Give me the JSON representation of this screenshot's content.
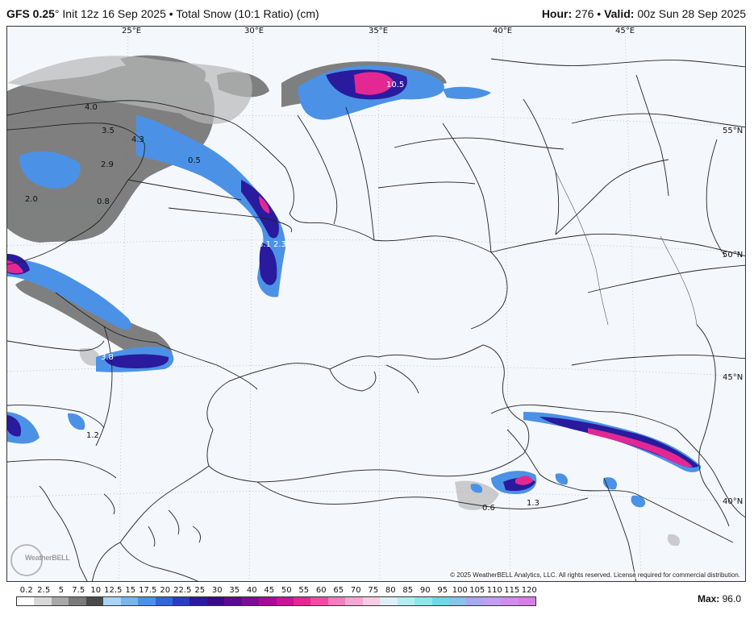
{
  "header": {
    "model": "GFS 0.25",
    "degree": "°",
    "init": " Init 12z 16 Sep 2025 • Total Snow (10:1 Ratio) (cm)",
    "hour_label": "Hour:",
    "hour_value": " 276 • ",
    "valid_label": "Valid:",
    "valid_value": " 00z Sun 28 Sep 2025"
  },
  "map": {
    "longitude_labels": [
      "25°E",
      "30°E",
      "35°E",
      "40°E",
      "45°E"
    ],
    "latitude_labels": [
      "55°N",
      "50°N",
      "45°N",
      "40°N"
    ],
    "value_labels": [
      "4.0",
      "3.5",
      "4.3",
      "2.9",
      "0.5",
      "2.0",
      "0.8",
      "10.5",
      "8.1",
      "2.3",
      "3.8",
      "1.2",
      "0.6",
      "1.3"
    ],
    "copyright": "© 2025 WeatherBELL Analytics, LLC. All rights reserved. License required for commercial distribution.",
    "logo": "WeatherBELL"
  },
  "legend": {
    "labels": [
      "0.2",
      "2.5",
      "5",
      "7.5",
      "10",
      "12.5",
      "15",
      "17.5",
      "20",
      "22.5",
      "25",
      "30",
      "35",
      "40",
      "45",
      "50",
      "55",
      "60",
      "65",
      "70",
      "75",
      "80",
      "85",
      "90",
      "95",
      "100",
      "105",
      "110",
      "115",
      "120"
    ],
    "colors": [
      "#ffffff",
      "#d8d8d8",
      "#a8a8a8",
      "#7a7a7a",
      "#4a4a4a",
      "#a9d4f5",
      "#78b6ef",
      "#4b92e6",
      "#3366d6",
      "#2a3dc2",
      "#2a1a9e",
      "#3b0a86",
      "#5b0c8e",
      "#7e0c96",
      "#a30c9a",
      "#c81496",
      "#e32893",
      "#f04aa6",
      "#f47cc0",
      "#f7a7d4",
      "#f9cbe4",
      "#e0eef7",
      "#b5ecf2",
      "#8de8ee",
      "#6ed9e4",
      "#88c3ea",
      "#a8a8ee",
      "#c39ef0",
      "#d18cec",
      "#d67ee6"
    ],
    "max_label": "Max:",
    "max_value": " 96.0"
  }
}
